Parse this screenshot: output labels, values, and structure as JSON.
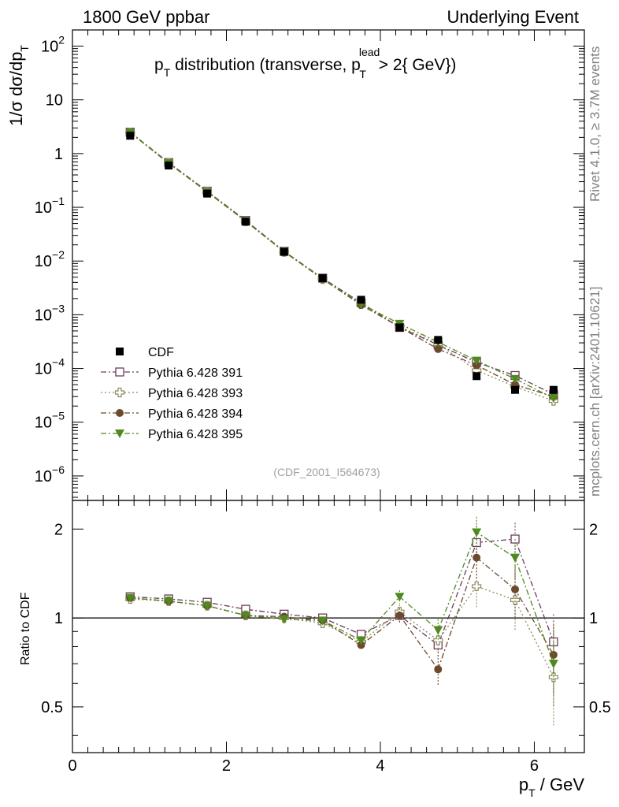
{
  "header": {
    "left": "1800 GeV ppbar",
    "right": "Underlying Event"
  },
  "side_labels": {
    "rivet": "Rivet 4.1.0, ≥ 3.7M events",
    "mcplots": "mcplots.cern.ch [arXiv:2401.10621]"
  },
  "chart_data": [
    {
      "type": "scatter",
      "panel": "main",
      "title": {
        "p": "p",
        "sub": "T",
        "mid": " distribution (transverse, p",
        "sup": "lead",
        "sub2": "T",
        "end": " > 2{ GeV})"
      },
      "ylabel": {
        "main": "1/σ  dσ/dp",
        "sub": "T"
      },
      "yscale": "log",
      "ylim": [
        3.5e-07,
        200
      ],
      "xlim": [
        0,
        6.65
      ],
      "y_ticks": [
        {
          "v": 100,
          "base": "10",
          "exp": "2"
        },
        {
          "v": 10,
          "base": "10",
          "exp": ""
        },
        {
          "v": 1,
          "base": "1",
          "exp": ""
        },
        {
          "v": 0.1,
          "base": "10",
          "exp": "−1"
        },
        {
          "v": 0.01,
          "base": "10",
          "exp": "−2"
        },
        {
          "v": 0.001,
          "base": "10",
          "exp": "−3"
        },
        {
          "v": 0.0001,
          "base": "10",
          "exp": "−4"
        },
        {
          "v": 1e-05,
          "base": "10",
          "exp": "−5"
        },
        {
          "v": 1e-06,
          "base": "10",
          "exp": "−6"
        }
      ],
      "watermark": "(CDF_2001_I564673)",
      "legend_position": "bottom-left",
      "x": [
        0.75,
        1.25,
        1.75,
        2.25,
        2.75,
        3.25,
        3.75,
        4.25,
        4.75,
        5.25,
        5.75,
        6.25
      ],
      "series": [
        {
          "name": "CDF",
          "color": "#000000",
          "marker": "square-filled",
          "line": "none",
          "values": [
            2.15,
            0.6,
            0.18,
            0.054,
            0.0148,
            0.0048,
            0.0019,
            0.00058,
            0.00034,
            7.2e-05,
            4e-05,
            4e-05
          ]
        },
        {
          "name": "Pythia 6.428 391",
          "color": "#6b3d5e",
          "marker": "square-open",
          "line": "dashdot",
          "values": [
            2.5,
            0.68,
            0.2,
            0.057,
            0.0152,
            0.0048,
            0.00168,
            0.00058,
            0.000275,
            0.00013,
            7.4e-05,
            3.3e-05
          ]
        },
        {
          "name": "Pythia 6.428 393",
          "color": "#8e8a5a",
          "marker": "cross-open",
          "line": "dotted",
          "values": [
            2.45,
            0.67,
            0.195,
            0.055,
            0.0148,
            0.0046,
            0.00158,
            0.00061,
            0.000285,
            9.2e-05,
            4.6e-05,
            2.5e-05
          ]
        },
        {
          "name": "Pythia 6.428 394",
          "color": "#6b4a2e",
          "marker": "circle-filled",
          "line": "dashdot",
          "values": [
            2.45,
            0.66,
            0.193,
            0.055,
            0.015,
            0.0046,
            0.00152,
            0.00059,
            0.00023,
            0.000115,
            5e-05,
            3e-05
          ]
        },
        {
          "name": "Pythia 6.428 395",
          "color": "#4f8a1e",
          "marker": "triangle-down-filled",
          "line": "dashdot",
          "values": [
            2.45,
            0.66,
            0.193,
            0.055,
            0.0148,
            0.0047,
            0.00158,
            0.00068,
            0.00031,
            0.00014,
            6.4e-05,
            2.8e-05
          ]
        }
      ]
    },
    {
      "type": "scatter",
      "panel": "ratio",
      "ylabel": "Ratio to CDF",
      "xlabel": {
        "p": "p",
        "sub": "T",
        "rest": " / GeV"
      },
      "xlim": [
        0,
        6.65
      ],
      "ylim": [
        0.35,
        2.5
      ],
      "yscale": "log",
      "x_ticks": [
        0,
        2,
        4,
        6
      ],
      "y_ticks": [
        0.5,
        1,
        2
      ],
      "reference_line": 1,
      "x": [
        0.75,
        1.25,
        1.75,
        2.25,
        2.75,
        3.25,
        3.75,
        4.25,
        4.75,
        5.25,
        5.75,
        6.25
      ],
      "series": [
        {
          "name": "Pythia 6.428 391",
          "color": "#6b3d5e",
          "marker": "square-open",
          "line": "dashdot",
          "values": [
            1.18,
            1.16,
            1.13,
            1.07,
            1.03,
            1.0,
            0.88,
            1.02,
            0.81,
            1.8,
            1.85,
            0.83
          ],
          "errors": [
            0.01,
            0.01,
            0.01,
            0.01,
            0.02,
            0.02,
            0.03,
            0.06,
            0.08,
            0.25,
            0.25,
            0.2
          ]
        },
        {
          "name": "Pythia 6.428 393",
          "color": "#8e8a5a",
          "marker": "cross-open",
          "line": "dotted",
          "values": [
            1.16,
            1.14,
            1.1,
            1.02,
            1.0,
            0.96,
            0.83,
            1.05,
            0.84,
            1.28,
            1.15,
            0.63
          ],
          "errors": [
            0.01,
            0.01,
            0.01,
            0.01,
            0.02,
            0.02,
            0.03,
            0.06,
            0.08,
            0.2,
            0.25,
            0.2
          ]
        },
        {
          "name": "Pythia 6.428 394",
          "color": "#6b4a2e",
          "marker": "circle-filled",
          "line": "dashdot",
          "values": [
            1.17,
            1.14,
            1.1,
            1.02,
            1.01,
            0.98,
            0.81,
            1.02,
            0.67,
            1.6,
            1.25,
            0.75
          ],
          "errors": [
            0.01,
            0.01,
            0.01,
            0.01,
            0.02,
            0.02,
            0.03,
            0.06,
            0.08,
            0.25,
            0.25,
            0.2
          ]
        },
        {
          "name": "Pythia 6.428 395",
          "color": "#4f8a1e",
          "marker": "triangle-down-filled",
          "line": "dashdot",
          "values": [
            1.17,
            1.14,
            1.1,
            1.02,
            0.99,
            0.98,
            0.84,
            1.18,
            0.91,
            1.95,
            1.6,
            0.7
          ],
          "errors": [
            0.01,
            0.01,
            0.01,
            0.01,
            0.02,
            0.02,
            0.03,
            0.06,
            0.08,
            0.25,
            0.25,
            0.2
          ]
        }
      ]
    }
  ]
}
